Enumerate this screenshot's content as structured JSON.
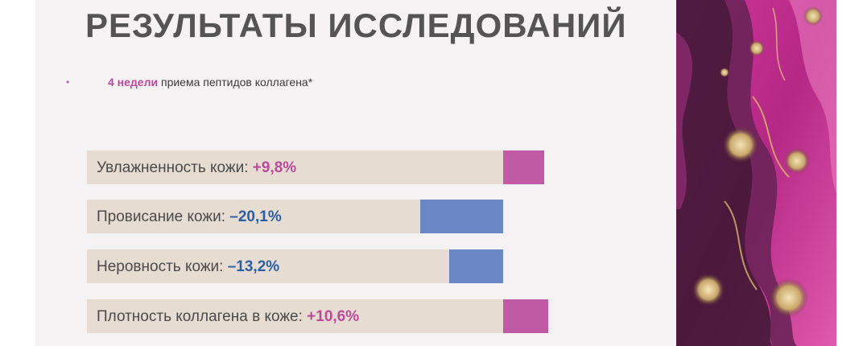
{
  "slide": {
    "title": "РЕЗУЛЬТАТЫ ИССЛЕДОВАНИЙ",
    "bullet": "•",
    "subtitle_accent": "4 недели",
    "subtitle_rest": " приема пептидов коллагена*"
  },
  "colors": {
    "background": "#f4f2f2",
    "title": "#545454",
    "track": "#e7dcd1",
    "positive": "#b94b9a",
    "negative": "#2a5fa5",
    "positive_bar": "#c05aa4",
    "negative_bar": "#6a86c4"
  },
  "results": [
    {
      "label": "Увлажненность кожи: ",
      "value": "+9,8%",
      "change": 9.8
    },
    {
      "label": "Провисание кожи: ",
      "value": "–20,1%",
      "change": -20.1
    },
    {
      "label": "Неровность кожи: ",
      "value": "–13,2%",
      "change": -13.2
    },
    {
      "label": "Плотность коллагена в коже: ",
      "value": "+10,6%",
      "change": 10.6
    }
  ],
  "decor": {
    "marble_icon": "pink-gold-marble-image"
  }
}
